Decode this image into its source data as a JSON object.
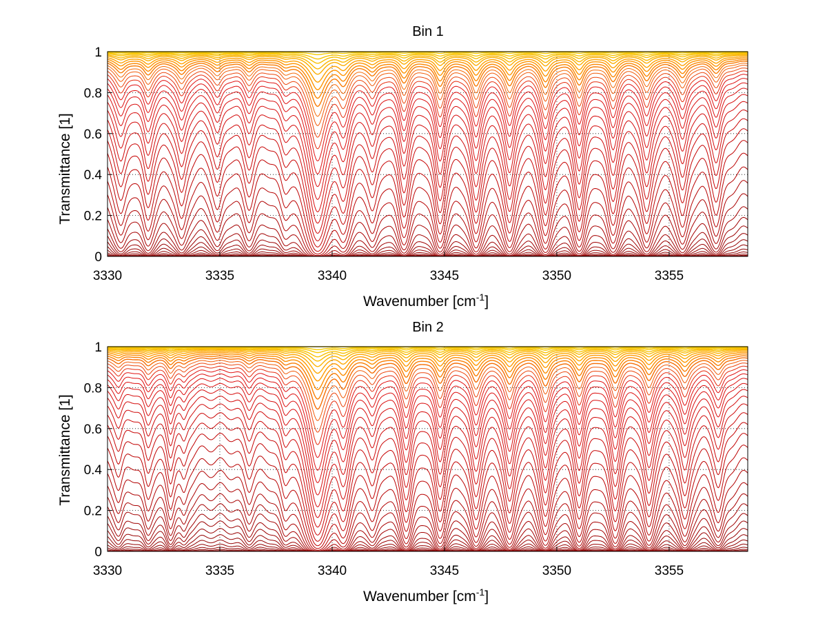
{
  "chart_data": [
    {
      "type": "line",
      "title": "Bin 1",
      "xlabel": "Wavenumber [cm",
      "xlabel_sup": "-1",
      "xlabel_end": "]",
      "ylabel": "Transmittance [1]",
      "xlim": [
        3330,
        3358.5
      ],
      "ylim": [
        0,
        1
      ],
      "grid": true,
      "x_ticks": [
        "3330",
        "3335",
        "3340",
        "3345",
        "3350",
        "3355"
      ],
      "y_ticks": [
        "0",
        "0.2",
        "0.4",
        "0.6",
        "0.8",
        "1"
      ],
      "series_count": 40,
      "series_baselines": [
        1.0,
        0.998,
        0.995,
        0.992,
        0.988,
        0.984,
        0.978,
        0.972,
        0.965,
        0.958,
        0.949,
        0.94,
        0.928,
        0.915,
        0.9,
        0.882,
        0.862,
        0.838,
        0.81,
        0.778,
        0.74,
        0.7,
        0.654,
        0.6,
        0.54,
        0.475,
        0.41,
        0.345,
        0.28,
        0.225,
        0.18,
        0.14,
        0.105,
        0.075,
        0.05,
        0.032,
        0.018,
        0.009,
        0.004,
        0.001
      ],
      "absorption_lines": [
        {
          "x": 3330.6,
          "depth": 1.4,
          "width": 0.28
        },
        {
          "x": 3331.8,
          "depth": 1.6,
          "width": 0.26
        },
        {
          "x": 3333.3,
          "depth": 1.6,
          "width": 0.26
        },
        {
          "x": 3334.9,
          "depth": 1.2,
          "width": 0.26
        },
        {
          "x": 3336.3,
          "depth": 1.1,
          "width": 0.26
        },
        {
          "x": 3337.9,
          "depth": 0.7,
          "width": 0.25
        },
        {
          "x": 3339.35,
          "depth": 6.0,
          "width": 0.4
        },
        {
          "x": 3340.5,
          "depth": 2.5,
          "width": 0.3
        },
        {
          "x": 3341.8,
          "depth": 1.5,
          "width": 0.26
        },
        {
          "x": 3343.2,
          "depth": 2.5,
          "width": 0.26
        },
        {
          "x": 3344.8,
          "depth": 3.0,
          "width": 0.26
        },
        {
          "x": 3346.4,
          "depth": 3.0,
          "width": 0.26
        },
        {
          "x": 3347.9,
          "depth": 3.0,
          "width": 0.26
        },
        {
          "x": 3349.5,
          "depth": 3.2,
          "width": 0.26
        },
        {
          "x": 3351.0,
          "depth": 2.8,
          "width": 0.26
        },
        {
          "x": 3352.5,
          "depth": 2.4,
          "width": 0.26
        },
        {
          "x": 3354.0,
          "depth": 2.4,
          "width": 0.26
        },
        {
          "x": 3355.6,
          "depth": 2.0,
          "width": 0.26
        },
        {
          "x": 3357.1,
          "depth": 1.4,
          "width": 0.26
        }
      ]
    },
    {
      "type": "line",
      "title": "Bin 2",
      "xlabel": "Wavenumber [cm",
      "xlabel_sup": "-1",
      "xlabel_end": "]",
      "ylabel": "Transmittance [1]",
      "xlim": [
        3330,
        3358.5
      ],
      "ylim": [
        0,
        1
      ],
      "grid": true,
      "x_ticks": [
        "3330",
        "3335",
        "3340",
        "3345",
        "3350",
        "3355"
      ],
      "y_ticks": [
        "0",
        "0.2",
        "0.4",
        "0.6",
        "0.8",
        "1"
      ],
      "series_count": 40,
      "series_baselines": [
        1.0,
        0.998,
        0.996,
        0.993,
        0.99,
        0.986,
        0.981,
        0.975,
        0.968,
        0.96,
        0.951,
        0.94,
        0.928,
        0.914,
        0.898,
        0.88,
        0.86,
        0.837,
        0.81,
        0.78,
        0.745,
        0.705,
        0.66,
        0.61,
        0.555,
        0.495,
        0.435,
        0.375,
        0.32,
        0.27,
        0.22,
        0.18,
        0.14,
        0.105,
        0.075,
        0.05,
        0.03,
        0.016,
        0.007,
        0.002
      ],
      "absorption_lines": [
        {
          "x": 3330.5,
          "depth": 0.6,
          "width": 0.22
        },
        {
          "x": 3331.8,
          "depth": 0.8,
          "width": 0.22
        },
        {
          "x": 3332.8,
          "depth": 1.0,
          "width": 0.2
        },
        {
          "x": 3333.4,
          "depth": 0.6,
          "width": 0.2
        },
        {
          "x": 3336.3,
          "depth": 0.5,
          "width": 0.22
        },
        {
          "x": 3337.9,
          "depth": 0.7,
          "width": 0.22
        },
        {
          "x": 3339.35,
          "depth": 6.0,
          "width": 0.4
        },
        {
          "x": 3340.5,
          "depth": 2.8,
          "width": 0.3
        },
        {
          "x": 3341.8,
          "depth": 1.3,
          "width": 0.26
        },
        {
          "x": 3343.3,
          "depth": 2.6,
          "width": 0.26
        },
        {
          "x": 3344.8,
          "depth": 2.6,
          "width": 0.26
        },
        {
          "x": 3346.4,
          "depth": 2.5,
          "width": 0.26
        },
        {
          "x": 3347.9,
          "depth": 2.8,
          "width": 0.26
        },
        {
          "x": 3349.5,
          "depth": 3.0,
          "width": 0.26
        },
        {
          "x": 3351.0,
          "depth": 2.4,
          "width": 0.26
        },
        {
          "x": 3352.6,
          "depth": 2.6,
          "width": 0.26
        },
        {
          "x": 3354.1,
          "depth": 2.4,
          "width": 0.26
        },
        {
          "x": 3355.7,
          "depth": 2.0,
          "width": 0.26
        },
        {
          "x": 3357.2,
          "depth": 1.2,
          "width": 0.26
        }
      ]
    }
  ],
  "colors": {
    "curve_deep": "#8b0000",
    "curve_mid": "#e01010",
    "curve_light": "#ff9a00",
    "curve_top": "#f5d000",
    "grid": "#000000",
    "axes": "#000000"
  }
}
